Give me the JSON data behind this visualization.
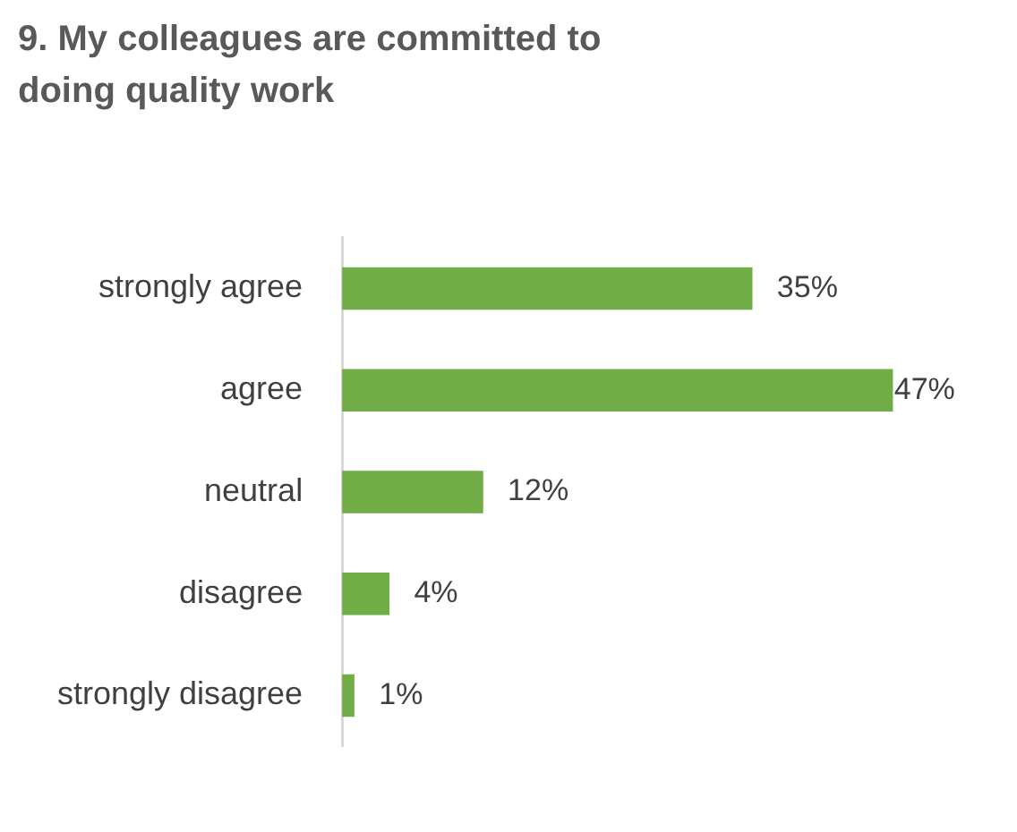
{
  "chart_data": {
    "type": "bar",
    "orientation": "horizontal",
    "title": "9. My colleagues are committed to doing quality work",
    "categories": [
      "strongly agree",
      "agree",
      "neutral",
      "disagree",
      "strongly disagree"
    ],
    "values": [
      35,
      47,
      12,
      4,
      1
    ],
    "color": "#70ad47",
    "value_labels": [
      "35%",
      "47%",
      "12%",
      "4%",
      "1%"
    ],
    "legend": false,
    "tick_labels": "y"
  }
}
